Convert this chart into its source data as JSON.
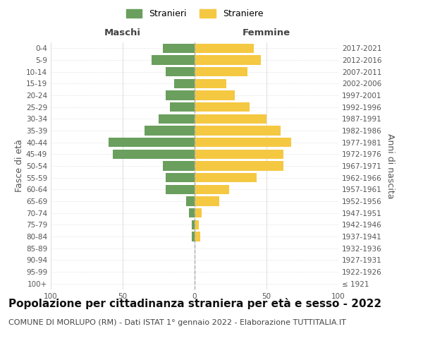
{
  "age_groups": [
    "100+",
    "95-99",
    "90-94",
    "85-89",
    "80-84",
    "75-79",
    "70-74",
    "65-69",
    "60-64",
    "55-59",
    "50-54",
    "45-49",
    "40-44",
    "35-39",
    "30-34",
    "25-29",
    "20-24",
    "15-19",
    "10-14",
    "5-9",
    "0-4"
  ],
  "birth_years": [
    "≤ 1921",
    "1922-1926",
    "1927-1931",
    "1932-1936",
    "1937-1941",
    "1942-1946",
    "1947-1951",
    "1952-1956",
    "1957-1961",
    "1962-1966",
    "1967-1971",
    "1972-1976",
    "1977-1981",
    "1982-1986",
    "1987-1991",
    "1992-1996",
    "1997-2001",
    "2002-2006",
    "2007-2011",
    "2012-2016",
    "2017-2021"
  ],
  "maschi": [
    0,
    0,
    0,
    0,
    2,
    2,
    4,
    6,
    20,
    20,
    22,
    57,
    60,
    35,
    25,
    17,
    20,
    14,
    20,
    30,
    22
  ],
  "femmine": [
    0,
    0,
    0,
    0,
    4,
    3,
    5,
    17,
    24,
    43,
    62,
    62,
    67,
    60,
    50,
    38,
    28,
    22,
    37,
    46,
    41
  ],
  "maschi_color": "#6a9f5e",
  "femmine_color": "#f5c842",
  "background_color": "#ffffff",
  "grid_color": "#d0d0d0",
  "title": "Popolazione per cittadinanza straniera per età e sesso - 2022",
  "subtitle": "COMUNE DI MORLUPO (RM) - Dati ISTAT 1° gennaio 2022 - Elaborazione TUTTITALIA.IT",
  "xlabel_left": "Maschi",
  "xlabel_right": "Femmine",
  "ylabel_left": "Fasce di età",
  "ylabel_right": "Anni di nascita",
  "legend_maschi": "Stranieri",
  "legend_femmine": "Straniere",
  "xlim": 100,
  "bar_height": 0.8,
  "dashed_line_color": "#aaaaaa",
  "title_fontsize": 11,
  "subtitle_fontsize": 8,
  "tick_fontsize": 7.5,
  "label_fontsize": 9,
  "header_fontsize": 9.5
}
